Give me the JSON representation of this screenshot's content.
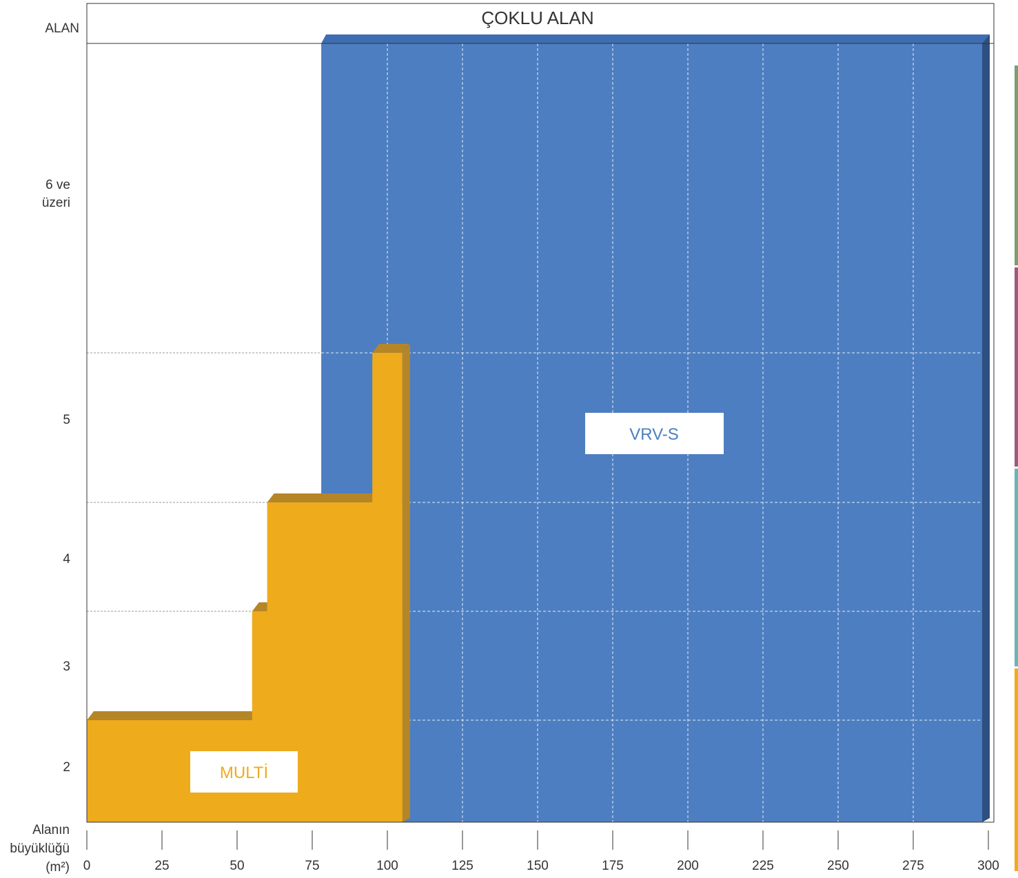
{
  "chart_data": {
    "type": "area",
    "header": {
      "left_label": "ALAN",
      "title": "ÇOKLU ALAN"
    },
    "x_axis": {
      "label_lines": [
        "Alanın",
        "büyüklüğü",
        "(m²)"
      ],
      "min": 0,
      "max": 300,
      "ticks": [
        0,
        25,
        50,
        75,
        100,
        125,
        150,
        175,
        200,
        225,
        250,
        275,
        300
      ]
    },
    "y_axis": {
      "rows": [
        {
          "label": [
            "2"
          ],
          "value": 2
        },
        {
          "label": [
            "3"
          ],
          "value": 3
        },
        {
          "label": [
            "4"
          ],
          "value": 4
        },
        {
          "label": [
            "5"
          ],
          "value": 5
        },
        {
          "label": [
            "6 ve",
            "üzeri"
          ],
          "value": 6
        }
      ]
    },
    "series": [
      {
        "name": "VRV-S",
        "color": "#4d7ec1",
        "region": {
          "x_from": 78,
          "x_to": 300,
          "rooms_from": 2,
          "rooms_to": 6
        }
      },
      {
        "name": "MULTİ",
        "color": "#eeab1c",
        "steps": [
          {
            "x_from": 0,
            "x_to": 55,
            "rooms": 2
          },
          {
            "x_from": 55,
            "x_to": 60,
            "rooms": 3
          },
          {
            "x_from": 60,
            "x_to": 95,
            "rooms": 4
          },
          {
            "x_from": 95,
            "x_to": 105,
            "rooms": 5
          }
        ]
      }
    ],
    "grid": true,
    "side_strip_colors": [
      "#7f9d71",
      "#9c5b7e",
      "#6bb6b4",
      "#eeab1c"
    ]
  }
}
